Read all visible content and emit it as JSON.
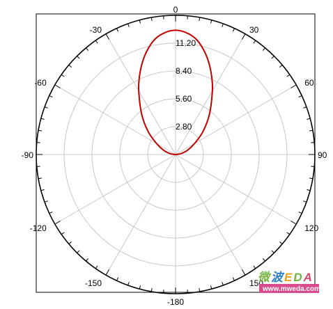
{
  "chart_data": {
    "type": "polar-line",
    "title": "",
    "angle_zero": "top",
    "angle_direction": "clockwise",
    "angle_labels": [
      "0",
      "30",
      "60",
      "90",
      "120",
      "150",
      "-180",
      "-150",
      "-120",
      "-90",
      "-60",
      "-30"
    ],
    "angle_label_degrees": [
      0,
      30,
      60,
      90,
      120,
      150,
      180,
      210,
      240,
      270,
      300,
      330
    ],
    "radial_ticks": [
      2.8,
      5.6,
      8.4,
      11.2
    ],
    "radial_tick_labels": [
      "2.80",
      "5.60",
      "8.40",
      "11.20"
    ],
    "rlim": [
      0,
      14
    ],
    "grid": true,
    "series": [
      {
        "color": "#c00000",
        "theta_deg": [
          -90,
          -80,
          -70,
          -60,
          -50,
          -40,
          -30,
          -25,
          -20,
          -15,
          -10,
          -5,
          0,
          5,
          10,
          15,
          20,
          25,
          30,
          40,
          50,
          60,
          70,
          80,
          90
        ],
        "r": [
          0.15,
          0.6,
          1.3,
          2.2,
          3.6,
          5.3,
          7.4,
          8.6,
          9.8,
          10.9,
          11.8,
          12.3,
          12.5,
          12.3,
          11.8,
          10.9,
          9.8,
          8.6,
          7.4,
          5.3,
          3.6,
          2.2,
          1.3,
          0.6,
          0.15
        ]
      }
    ]
  },
  "watermark": {
    "brand": "微波EDA",
    "brand_colors": [
      "#7ab648",
      "#2a7fc9",
      "#e8a020",
      "#6fb33d",
      "#d9486a"
    ],
    "url": "www.mweda.com",
    "url_bg": "#d94a8c"
  }
}
